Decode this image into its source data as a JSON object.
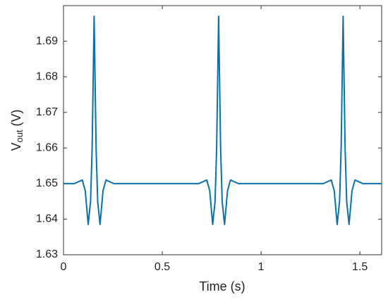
{
  "chart_data": {
    "type": "line",
    "x_label": "Time (s)",
    "y_label": {
      "main": "V",
      "sub": "out",
      "unit": "(V)"
    },
    "color": "#0a72a8",
    "x": [
      0,
      0.055,
      0.095,
      0.11,
      0.125,
      0.137,
      0.145,
      0.155,
      0.165,
      0.173,
      0.185,
      0.2,
      0.215,
      0.255,
      0.685,
      0.725,
      0.74,
      0.755,
      0.767,
      0.775,
      0.785,
      0.795,
      0.803,
      0.815,
      0.83,
      0.845,
      0.885,
      1.315,
      1.355,
      1.37,
      1.385,
      1.397,
      1.405,
      1.415,
      1.425,
      1.433,
      1.445,
      1.46,
      1.475,
      1.515,
      1.61
    ],
    "values": [
      1.65,
      1.65,
      1.651,
      1.648,
      1.6385,
      1.645,
      1.66,
      1.697,
      1.66,
      1.645,
      1.6385,
      1.648,
      1.651,
      1.65,
      1.65,
      1.651,
      1.648,
      1.6385,
      1.645,
      1.66,
      1.697,
      1.66,
      1.645,
      1.6385,
      1.648,
      1.651,
      1.65,
      1.65,
      1.651,
      1.648,
      1.6385,
      1.645,
      1.66,
      1.697,
      1.66,
      1.645,
      1.6385,
      1.648,
      1.651,
      1.65,
      1.65
    ],
    "xlim": [
      0,
      1.61
    ],
    "ylim": [
      1.63,
      1.7
    ],
    "xticks": [
      0,
      0.5,
      1,
      1.5
    ],
    "yticks": [
      1.63,
      1.64,
      1.65,
      1.66,
      1.67,
      1.68,
      1.69
    ]
  }
}
